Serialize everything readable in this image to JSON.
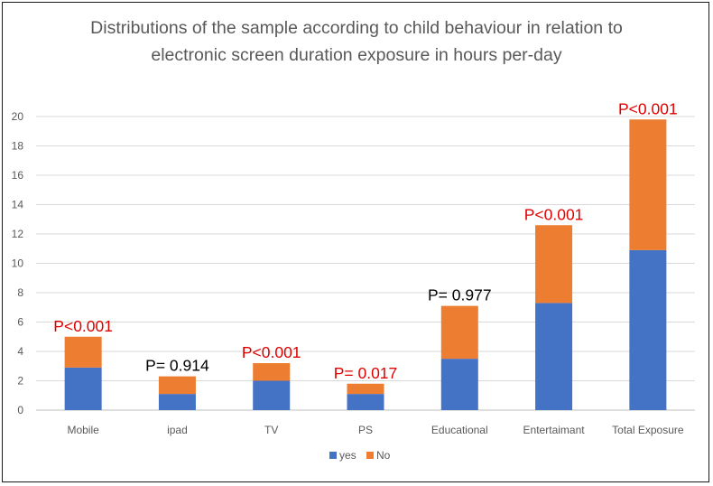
{
  "chart_data": {
    "type": "bar",
    "stacked": true,
    "title_lines": [
      "Distributions of the sample according to child behaviour in relation to",
      "electronic screen duration exposure in hours per-day"
    ],
    "categories": [
      "Mobile",
      "ipad",
      "TV",
      "PS",
      "Educational",
      "Entertaimant",
      "Total Exposure"
    ],
    "series": [
      {
        "name": "yes",
        "color": "#4472C4",
        "values": [
          2.9,
          1.1,
          2.0,
          1.1,
          3.5,
          7.3,
          10.9
        ]
      },
      {
        "name": "No",
        "color": "#ED7D31",
        "values": [
          2.1,
          1.2,
          1.2,
          0.7,
          3.6,
          5.3,
          8.9
        ]
      }
    ],
    "annotations": [
      {
        "text": "P<0.001",
        "color": "#E00000"
      },
      {
        "text": "P= 0.914",
        "color": "#000000"
      },
      {
        "text": "P<0.001",
        "color": "#E00000"
      },
      {
        "text": "P= 0.017",
        "color": "#E00000"
      },
      {
        "text": "P= 0.977",
        "color": "#000000"
      },
      {
        "text": "P<0.001",
        "color": "#E00000"
      },
      {
        "text": "P<0.001",
        "color": "#E00000"
      }
    ],
    "ylim": [
      0,
      20
    ],
    "yticks": [
      0,
      2,
      4,
      6,
      8,
      10,
      12,
      14,
      16,
      18,
      20
    ],
    "grid": true,
    "legend_position": "bottom-center",
    "xlabel": "",
    "ylabel": ""
  }
}
